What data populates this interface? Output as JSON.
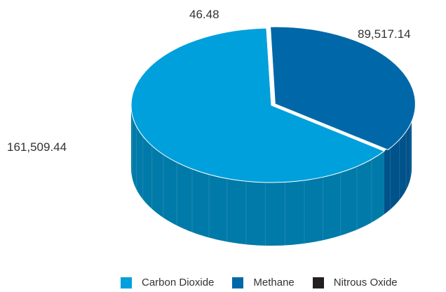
{
  "chart_data": {
    "type": "pie",
    "style": "3d",
    "categories": [
      "Carbon Dioxide",
      "Methane",
      "Nitrous Oxide"
    ],
    "values": [
      161509.44,
      89517.14,
      46.48
    ],
    "data_labels": [
      "161,509.44",
      "89,517.14",
      "46.48"
    ],
    "colors": [
      "#00a0dc",
      "#0068a8",
      "#231f20"
    ],
    "side_colors": [
      "#007aa8",
      "#00528a",
      "#111111"
    ],
    "legend_position": "bottom"
  },
  "legend": {
    "items": [
      {
        "label": "Carbon Dioxide",
        "color": "#00a0dc"
      },
      {
        "label": "Methane",
        "color": "#0068a8"
      },
      {
        "label": "Nitrous Oxide",
        "color": "#231f20"
      }
    ]
  }
}
